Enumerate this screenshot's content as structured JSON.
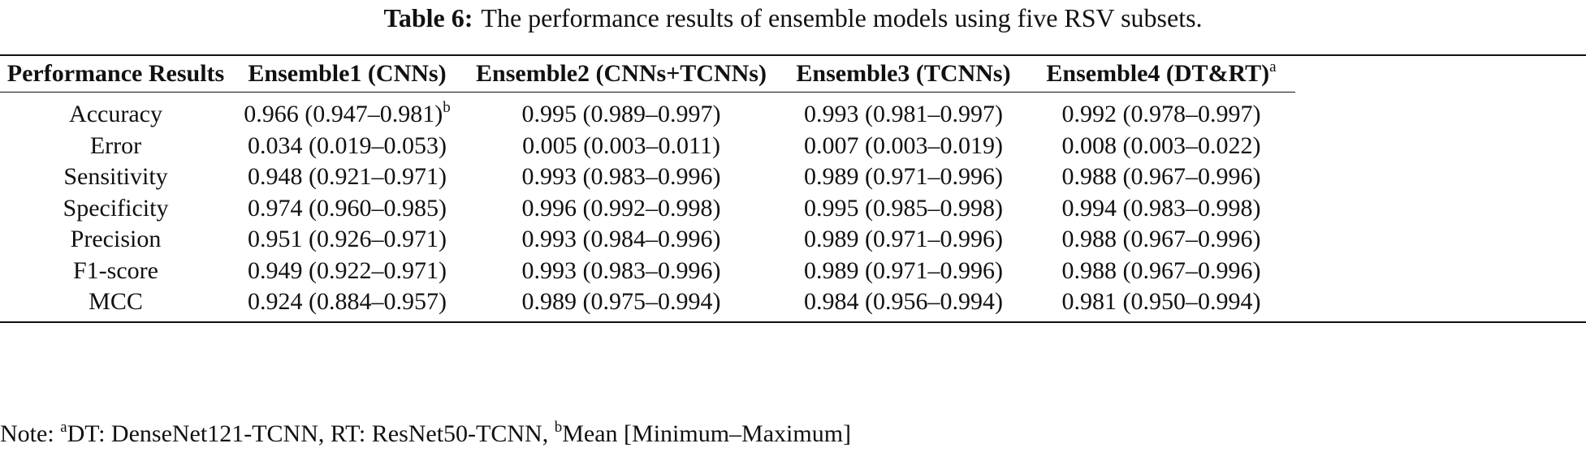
{
  "caption": {
    "label": "Table 6:",
    "text": "The performance results of ensemble models using five RSV subsets."
  },
  "table": {
    "header": [
      "Performance Results",
      "Ensemble1 (CNNs)",
      "Ensemble2 (CNNs+TCNNs)",
      "Ensemble3 (TCNNs)",
      {
        "text": "Ensemble4 (DT&RT)",
        "sup": "a"
      }
    ],
    "rows": [
      [
        "Accuracy",
        {
          "text": "0.966 (0.947–0.981)",
          "sup": "b"
        },
        "0.995 (0.989–0.997)",
        "0.993 (0.981–0.997)",
        "0.992 (0.978–0.997)"
      ],
      [
        "Error",
        "0.034 (0.019–0.053)",
        "0.005 (0.003–0.011)",
        "0.007 (0.003–0.019)",
        "0.008 (0.003–0.022)"
      ],
      [
        "Sensitivity",
        "0.948 (0.921–0.971)",
        "0.993 (0.983–0.996)",
        "0.989 (0.971–0.996)",
        "0.988 (0.967–0.996)"
      ],
      [
        "Specificity",
        "0.974 (0.960–0.985)",
        "0.996 (0.992–0.998)",
        "0.995 (0.985–0.998)",
        "0.994 (0.983–0.998)"
      ],
      [
        "Precision",
        "0.951 (0.926–0.971)",
        "0.993 (0.984–0.996)",
        "0.989 (0.971–0.996)",
        "0.988 (0.967–0.996)"
      ],
      [
        "F1-score",
        "0.949 (0.922–0.971)",
        "0.993 (0.983–0.996)",
        "0.989 (0.971–0.996)",
        "0.988 (0.967–0.996)"
      ],
      [
        "MCC",
        "0.924 (0.884–0.957)",
        "0.989 (0.975–0.994)",
        "0.984 (0.956–0.994)",
        "0.981 (0.950–0.994)"
      ]
    ]
  },
  "note": {
    "label": "Note:",
    "items": [
      {
        "sup": "a",
        "text": "DT: DenseNet121-TCNN, RT: ResNet50-TCNN,"
      },
      {
        "sup": "b",
        "text": "Mean [Minimum–Maximum]"
      }
    ]
  }
}
